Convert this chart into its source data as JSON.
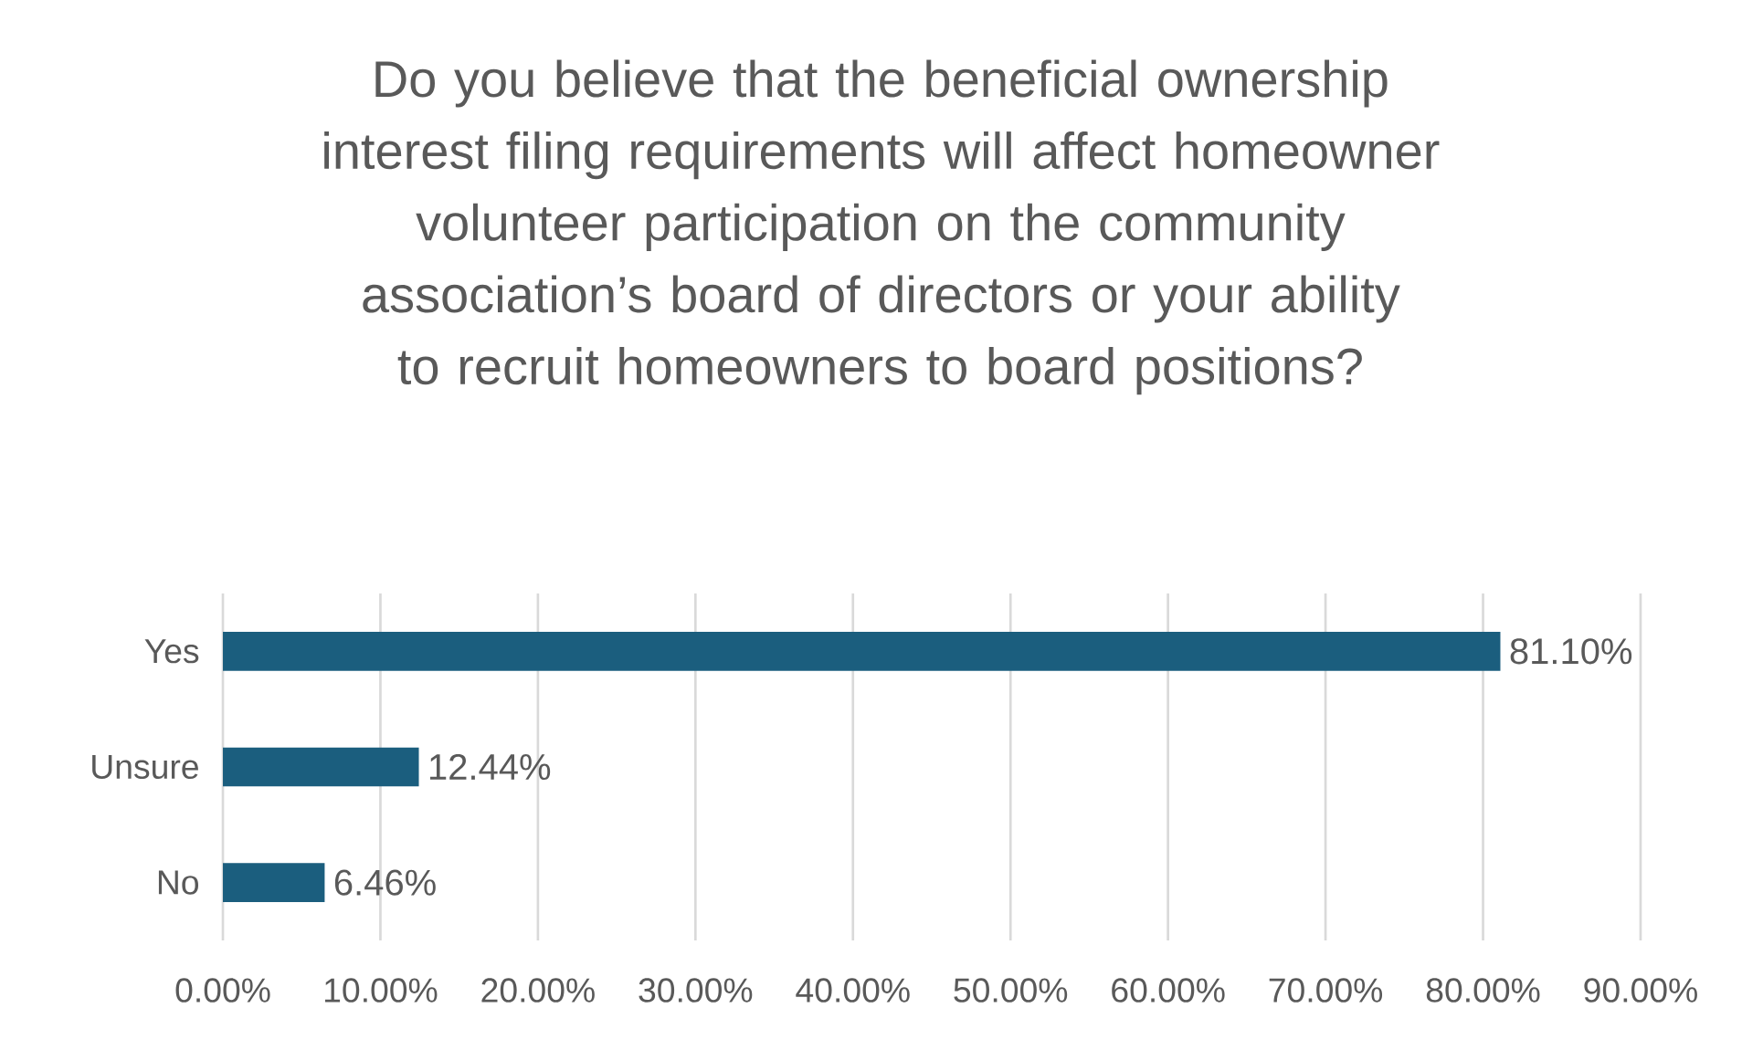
{
  "chart_data": {
    "type": "bar",
    "orientation": "horizontal",
    "title": "Do you believe that the beneficial ownership interest filing requirements will affect homeowner volunteer participation on the community association’s board of directors or your ability to recruit homeowners to board positions?",
    "categories": [
      "Yes",
      "Unsure",
      "No"
    ],
    "values": [
      81.1,
      12.44,
      6.46
    ],
    "value_labels": [
      "81.10%",
      "12.44%",
      "6.46%"
    ],
    "color": "#1b5e7e",
    "xlim": [
      0,
      90
    ],
    "xticks": [
      {
        "value": 0,
        "label": "0.00%"
      },
      {
        "value": 10,
        "label": "10.00%"
      },
      {
        "value": 20,
        "label": "20.00%"
      },
      {
        "value": 30,
        "label": "30.00%"
      },
      {
        "value": 40,
        "label": "40.00%"
      },
      {
        "value": 50,
        "label": "50.00%"
      },
      {
        "value": 60,
        "label": "60.00%"
      },
      {
        "value": 70,
        "label": "70.00%"
      },
      {
        "value": 80,
        "label": "80.00%"
      },
      {
        "value": 90,
        "label": "90.00%"
      }
    ],
    "grid": "x"
  }
}
